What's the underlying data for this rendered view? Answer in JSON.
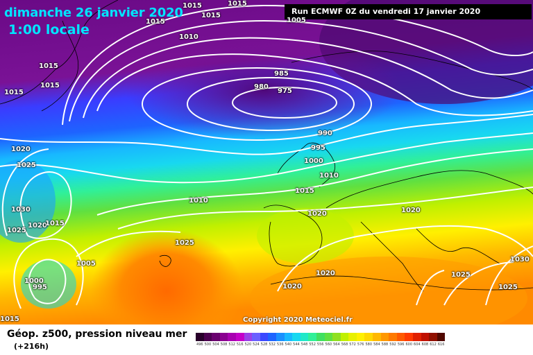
{
  "header": {
    "date": "dimanche 26 janvier 2020",
    "time": "1:00 locale",
    "run": "Run ECMWF 0Z du vendredi 17 janvier 2020"
  },
  "copyright": "Copyright 2020 Meteociel.fr",
  "footer": {
    "variable": "Géop. z500, pression niveau mer",
    "lead": "(+216h)"
  },
  "colors": {
    "purple": "#6a0a86",
    "blue": "#1e64ff",
    "cyan": "#18d8f0",
    "green": "#40d040",
    "yellow": "#f0f000",
    "orange": "#ff7a00"
  },
  "isobars": [
    {
      "id": "i1015a",
      "text": "1015"
    },
    {
      "id": "i1015b",
      "text": "1015"
    },
    {
      "id": "i1015c",
      "text": "1015"
    },
    {
      "id": "i1015d",
      "text": "1015"
    },
    {
      "id": "i1015e",
      "text": "1015"
    },
    {
      "id": "i1015f",
      "text": "1015"
    },
    {
      "id": "i1015g",
      "text": "1015"
    },
    {
      "id": "i1005a",
      "text": "1005"
    },
    {
      "id": "i1010a",
      "text": "1010"
    },
    {
      "id": "i985",
      "text": "985"
    },
    {
      "id": "i980",
      "text": "980"
    },
    {
      "id": "i975",
      "text": "975"
    },
    {
      "id": "i990",
      "text": "990"
    },
    {
      "id": "i995a",
      "text": "995"
    },
    {
      "id": "i1000a",
      "text": "1000"
    },
    {
      "id": "i1010b",
      "text": "1010"
    },
    {
      "id": "i1015h",
      "text": "1015"
    },
    {
      "id": "i1020a",
      "text": "1020"
    },
    {
      "id": "i1025a",
      "text": "1025"
    },
    {
      "id": "i1030a",
      "text": "1030"
    },
    {
      "id": "i1025b",
      "text": "1025"
    },
    {
      "id": "i1020b",
      "text": "1020"
    },
    {
      "id": "i1015i",
      "text": "1015"
    },
    {
      "id": "i1010c",
      "text": "1010"
    },
    {
      "id": "i1025c",
      "text": "1025"
    },
    {
      "id": "i1005b",
      "text": "1005"
    },
    {
      "id": "i1000b",
      "text": "1000"
    },
    {
      "id": "i995b",
      "text": "995"
    },
    {
      "id": "i1020c",
      "text": "1020"
    },
    {
      "id": "i1020d",
      "text": "1020"
    },
    {
      "id": "i1020e",
      "text": "1020"
    },
    {
      "id": "i1020f",
      "text": "1020"
    },
    {
      "id": "i1030b",
      "text": "1030"
    },
    {
      "id": "i1025d",
      "text": "1025"
    },
    {
      "id": "i1025e",
      "text": "1025"
    },
    {
      "id": "i1015j",
      "text": "1015"
    }
  ],
  "scale": {
    "labels": [
      "496",
      "500",
      "504",
      "508",
      "512",
      "516",
      "520",
      "524",
      "528",
      "532",
      "536",
      "540",
      "544",
      "548",
      "552",
      "556",
      "560",
      "564",
      "568",
      "572",
      "576",
      "580",
      "584",
      "588",
      "592",
      "596",
      "600",
      "604",
      "608",
      "612",
      "616"
    ],
    "colors": [
      "#28002a",
      "#4c0050",
      "#6a006e",
      "#8a0090",
      "#a800b0",
      "#c400c8",
      "#9a40e8",
      "#6a60ff",
      "#3a48ff",
      "#1e64ff",
      "#1a90ff",
      "#18b8ff",
      "#18d8f0",
      "#20e8c8",
      "#30f098",
      "#40e060",
      "#60e040",
      "#90e020",
      "#c0f000",
      "#e8f000",
      "#fff000",
      "#ffd800",
      "#ffb800",
      "#ff9800",
      "#ff7a00",
      "#ff5a00",
      "#ff3a00",
      "#e02000",
      "#c01000",
      "#901000",
      "#500800"
    ]
  }
}
